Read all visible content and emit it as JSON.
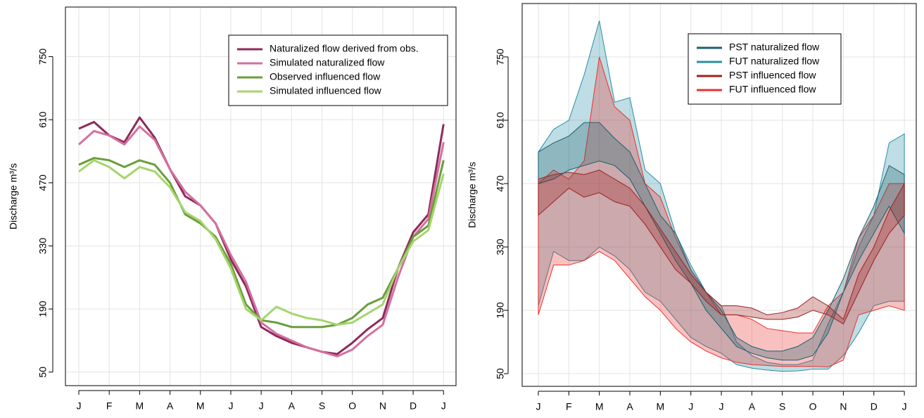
{
  "chart_data": [
    {
      "type": "line",
      "y_label": "Discharge m³/s",
      "x": [
        0,
        0.5,
        1,
        1.5,
        2,
        2.5,
        3,
        3.5,
        4,
        4.5,
        5,
        5.5,
        6,
        6.5,
        7,
        7.5,
        8,
        8.5,
        9,
        9.5,
        10,
        10.5,
        11,
        11.5,
        12
      ],
      "xlim": [
        -0.44,
        12.41
      ],
      "xticks": [
        {
          "value": 0,
          "label": "J"
        },
        {
          "value": 1,
          "label": "F"
        },
        {
          "value": 2,
          "label": "M"
        },
        {
          "value": 3,
          "label": "A"
        },
        {
          "value": 4,
          "label": "M"
        },
        {
          "value": 5,
          "label": "J"
        },
        {
          "value": 6,
          "label": "J"
        },
        {
          "value": 7,
          "label": "A"
        },
        {
          "value": 8,
          "label": "S"
        },
        {
          "value": 9,
          "label": "O"
        },
        {
          "value": 10,
          "label": "N"
        },
        {
          "value": 11,
          "label": "D"
        },
        {
          "value": 12,
          "label": "J"
        }
      ],
      "ylim": [
        20,
        860
      ],
      "yticks": [
        50,
        190,
        330,
        470,
        610,
        750
      ],
      "grid": true,
      "legend": "top-right",
      "series": [
        {
          "name": "Naturalized flow derived from obs.",
          "color": "#8e2a5a",
          "values": [
            590,
            605,
            575,
            560,
            615,
            570,
            500,
            440,
            420,
            380,
            300,
            240,
            150,
            130,
            115,
            105,
            95,
            90,
            115,
            145,
            170,
            280,
            360,
            400,
            600
          ]
        },
        {
          "name": "Simulated naturalized flow",
          "color": "#d370a0",
          "values": [
            555,
            585,
            575,
            555,
            595,
            565,
            500,
            450,
            420,
            380,
            310,
            250,
            160,
            135,
            120,
            105,
            95,
            85,
            100,
            130,
            155,
            260,
            350,
            390,
            560
          ]
        },
        {
          "name": "Observed influenced flow",
          "color": "#6a9e3a",
          "values": [
            510,
            525,
            520,
            505,
            520,
            510,
            470,
            400,
            380,
            350,
            290,
            200,
            165,
            160,
            150,
            150,
            150,
            155,
            170,
            200,
            215,
            280,
            350,
            375,
            520
          ]
        },
        {
          "name": "Simulated influenced flow",
          "color": "#a6d46e",
          "values": [
            495,
            520,
            505,
            480,
            505,
            495,
            460,
            405,
            385,
            345,
            280,
            190,
            165,
            195,
            180,
            170,
            165,
            155,
            160,
            180,
            200,
            280,
            340,
            365,
            490
          ]
        }
      ]
    },
    {
      "type": "band",
      "y_label": "Discharge m³/s",
      "x": [
        0,
        0.5,
        1,
        1.5,
        2,
        2.5,
        3,
        3.5,
        4,
        4.5,
        5,
        5.5,
        6,
        6.5,
        7,
        7.5,
        8,
        8.5,
        9,
        9.5,
        10,
        10.5,
        11,
        11.5,
        12
      ],
      "xlim": [
        -0.53,
        12.39
      ],
      "xticks": [
        {
          "value": 0,
          "label": "J"
        },
        {
          "value": 1,
          "label": "F"
        },
        {
          "value": 2,
          "label": "M"
        },
        {
          "value": 3,
          "label": "A"
        },
        {
          "value": 4,
          "label": "M"
        },
        {
          "value": 5,
          "label": "J"
        },
        {
          "value": 6,
          "label": "J"
        },
        {
          "value": 7,
          "label": "A"
        },
        {
          "value": 8,
          "label": "S"
        },
        {
          "value": 9,
          "label": "O"
        },
        {
          "value": 10,
          "label": "N"
        },
        {
          "value": 11,
          "label": "D"
        },
        {
          "value": 12,
          "label": "J"
        }
      ],
      "ylim": [
        22,
        868
      ],
      "yticks": [
        50,
        190,
        330,
        470,
        610,
        750
      ],
      "grid": true,
      "legend": "top-right",
      "series": [
        {
          "name": "FUT naturalized flow",
          "color": "#2a8ea5",
          "upper": [
            540,
            590,
            610,
            710,
            830,
            650,
            660,
            500,
            470,
            360,
            290,
            230,
            200,
            120,
            90,
            75,
            70,
            70,
            80,
            160,
            230,
            330,
            400,
            560,
            580
          ],
          "lower": [
            200,
            320,
            300,
            300,
            330,
            310,
            280,
            230,
            210,
            170,
            130,
            110,
            95,
            70,
            62,
            58,
            55,
            56,
            60,
            60,
            90,
            140,
            200,
            210,
            210
          ]
        },
        {
          "name": "FUT influenced flow",
          "color": "#e8322e",
          "upper": [
            470,
            500,
            480,
            520,
            750,
            640,
            610,
            470,
            440,
            350,
            280,
            230,
            180,
            180,
            170,
            150,
            145,
            140,
            140,
            200,
            230,
            350,
            400,
            470,
            470
          ],
          "lower": [
            180,
            290,
            290,
            300,
            320,
            300,
            260,
            220,
            190,
            150,
            120,
            100,
            85,
            75,
            70,
            68,
            66,
            66,
            66,
            65,
            80,
            180,
            190,
            200,
            190
          ]
        },
        {
          "name": "PST naturalized flow",
          "color": "#1f5f6e",
          "upper": [
            540,
            560,
            575,
            605,
            605,
            570,
            540,
            470,
            400,
            360,
            280,
            230,
            190,
            130,
            110,
            100,
            100,
            110,
            130,
            190,
            260,
            350,
            420,
            510,
            490
          ],
          "lower": [
            470,
            480,
            500,
            510,
            520,
            510,
            480,
            420,
            360,
            300,
            250,
            190,
            150,
            110,
            95,
            85,
            80,
            80,
            90,
            140,
            230,
            300,
            360,
            420,
            360
          ]
        },
        {
          "name": "PST influenced flow",
          "color": "#a01f1f",
          "upper": [
            480,
            490,
            495,
            490,
            500,
            480,
            460,
            420,
            370,
            320,
            270,
            230,
            200,
            200,
            195,
            180,
            185,
            195,
            220,
            200,
            170,
            270,
            330,
            410,
            470
          ],
          "lower": [
            400,
            430,
            460,
            440,
            450,
            430,
            420,
            380,
            330,
            280,
            250,
            210,
            180,
            180,
            175,
            170,
            170,
            175,
            190,
            180,
            160,
            230,
            300,
            360,
            400
          ]
        }
      ]
    }
  ]
}
